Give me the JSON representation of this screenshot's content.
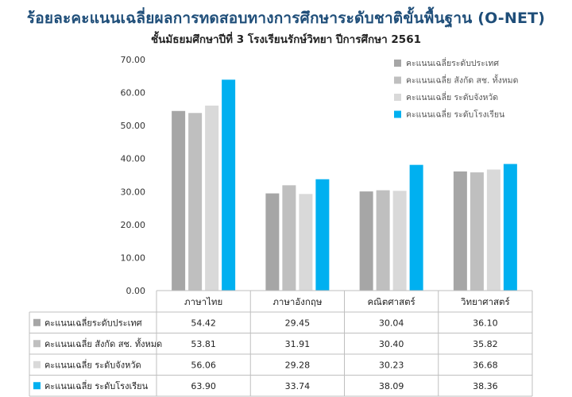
{
  "chart_data": {
    "type": "bar",
    "title": "ร้อยละคะแนนเฉลี่ยผลการทดสอบทางการศึกษาระดับชาติขั้นพื้นฐาน (O-NET)",
    "subtitle": "ชั้นมัธยมศึกษาปีที่ 3 โรงเรียนรักษ์วิทยา ปีการศึกษา 2561",
    "categories": [
      "ภาษาไทย",
      "ภาษาอังกฤษ",
      "คณิตศาสตร์",
      "วิทยาศาสตร์"
    ],
    "series": [
      {
        "name": "คะแนนเฉลี่ยระดับประเทศ",
        "values": [
          54.42,
          29.45,
          30.04,
          36.1
        ],
        "color": "#a6a6a6"
      },
      {
        "name": "คะแนนเฉลี่ย สังกัด สช. ทั้งหมด",
        "values": [
          53.81,
          31.91,
          30.4,
          35.82
        ],
        "color": "#bfbfbf"
      },
      {
        "name": "คะแนนเฉลี่ย ระดับจังหวัด",
        "values": [
          56.06,
          29.28,
          30.23,
          36.68
        ],
        "color": "#d9d9d9"
      },
      {
        "name": "คะแนนเฉลี่ย ระดับโรงเรียน",
        "values": [
          63.9,
          33.74,
          38.09,
          38.36
        ],
        "color": "#00b0f0"
      }
    ],
    "table_values": [
      [
        "54.42",
        "29.45",
        "30.04",
        "36.10"
      ],
      [
        "53.81",
        "31.91",
        "30.40",
        "35.82"
      ],
      [
        "56.06",
        "29.28",
        "30.23",
        "36.68"
      ],
      [
        "63.90",
        "33.74",
        "38.09",
        "38.36"
      ]
    ],
    "yticks": [
      "0.00",
      "10.00",
      "20.00",
      "30.00",
      "40.00",
      "50.00",
      "60.00",
      "70.00"
    ],
    "ylim": [
      0,
      70
    ],
    "grid": false,
    "legend_position": "top-right"
  }
}
